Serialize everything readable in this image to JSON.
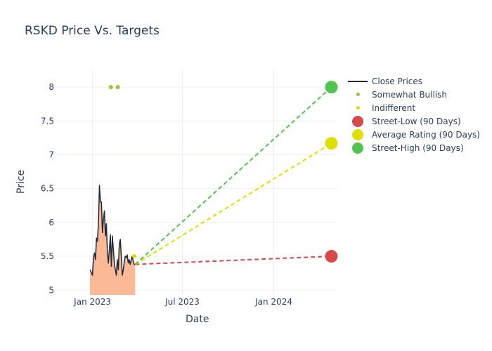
{
  "chart_data": {
    "type": "line",
    "title": "RSKD Price Vs. Targets",
    "xlabel": "Date",
    "ylabel": "Price",
    "xlim": [
      "2022-10-20",
      "2024-05-08"
    ],
    "ylim": [
      4.93,
      8.25
    ],
    "x_ticks": [
      {
        "date": "2023-01-01",
        "label": "Jan 2023"
      },
      {
        "date": "2023-07-01",
        "label": "Jul 2023"
      },
      {
        "date": "2024-01-01",
        "label": "Jan 2024"
      }
    ],
    "y_ticks": [
      5,
      5.5,
      6,
      6.5,
      7,
      7.5,
      8
    ],
    "y_tick_labels": [
      "5",
      "5.5",
      "6",
      "6.5",
      "7",
      "7.5",
      "8"
    ],
    "grid": true,
    "legend_position": "top-right",
    "colors": {
      "close_line": "#1f2a3a",
      "close_fill": "#fbb58f",
      "somewhat_bullish": "#8fce2f",
      "indifferent": "#dde000",
      "street_low": "#d9484b",
      "average": "#dde000",
      "street_high": "#4fc44f"
    },
    "series": [
      {
        "name": "Close Prices",
        "kind": "line",
        "x": [
          "2022-12-27",
          "2022-12-29",
          "2023-01-01",
          "2023-01-03",
          "2023-01-05",
          "2023-01-07",
          "2023-01-09",
          "2023-01-11",
          "2023-01-13",
          "2023-01-15",
          "2023-01-17",
          "2023-01-19",
          "2023-01-21",
          "2023-01-23",
          "2023-01-25",
          "2023-01-27",
          "2023-01-29",
          "2023-01-31",
          "2023-02-02",
          "2023-02-04",
          "2023-02-06",
          "2023-02-08",
          "2023-02-10",
          "2023-02-12",
          "2023-02-14",
          "2023-02-16",
          "2023-02-18",
          "2023-02-20",
          "2023-02-22",
          "2023-02-24",
          "2023-02-26",
          "2023-02-28",
          "2023-03-02",
          "2023-03-04",
          "2023-03-06",
          "2023-03-08",
          "2023-03-10",
          "2023-03-12",
          "2023-03-14",
          "2023-03-16",
          "2023-03-18",
          "2023-03-20",
          "2023-03-22",
          "2023-03-24",
          "2023-03-26",
          "2023-03-28"
        ],
        "y": [
          5.3,
          5.27,
          5.22,
          5.48,
          5.55,
          5.45,
          5.77,
          5.72,
          6.0,
          6.55,
          6.3,
          6.3,
          5.85,
          6.05,
          6.17,
          5.8,
          5.98,
          5.55,
          5.4,
          5.6,
          5.82,
          5.35,
          5.8,
          5.6,
          5.4,
          5.3,
          5.22,
          5.45,
          5.3,
          5.68,
          5.75,
          5.5,
          5.22,
          5.3,
          5.42,
          5.5,
          5.48,
          5.52,
          5.4,
          5.45,
          5.38,
          5.45,
          5.5,
          5.42,
          5.38,
          5.38
        ]
      },
      {
        "name": "Somewhat Bullish",
        "kind": "markers",
        "x": [
          "2023-02-07",
          "2023-02-21"
        ],
        "y": [
          8,
          8
        ]
      },
      {
        "name": "Indifferent",
        "kind": "markers",
        "x": [
          "2023-03-26"
        ],
        "y": [
          5.5
        ]
      },
      {
        "name": "Street-Low (90 Days)",
        "kind": "target",
        "x": [
          "2023-03-28",
          "2024-04-26"
        ],
        "y": [
          5.38,
          5.5
        ]
      },
      {
        "name": "Average Rating (90 Days)",
        "kind": "target",
        "x": [
          "2023-03-28",
          "2024-04-26"
        ],
        "y": [
          5.38,
          7.17
        ]
      },
      {
        "name": "Street-High (90 Days)",
        "kind": "target",
        "x": [
          "2023-03-28",
          "2024-04-26"
        ],
        "y": [
          5.38,
          8.0
        ]
      }
    ]
  }
}
